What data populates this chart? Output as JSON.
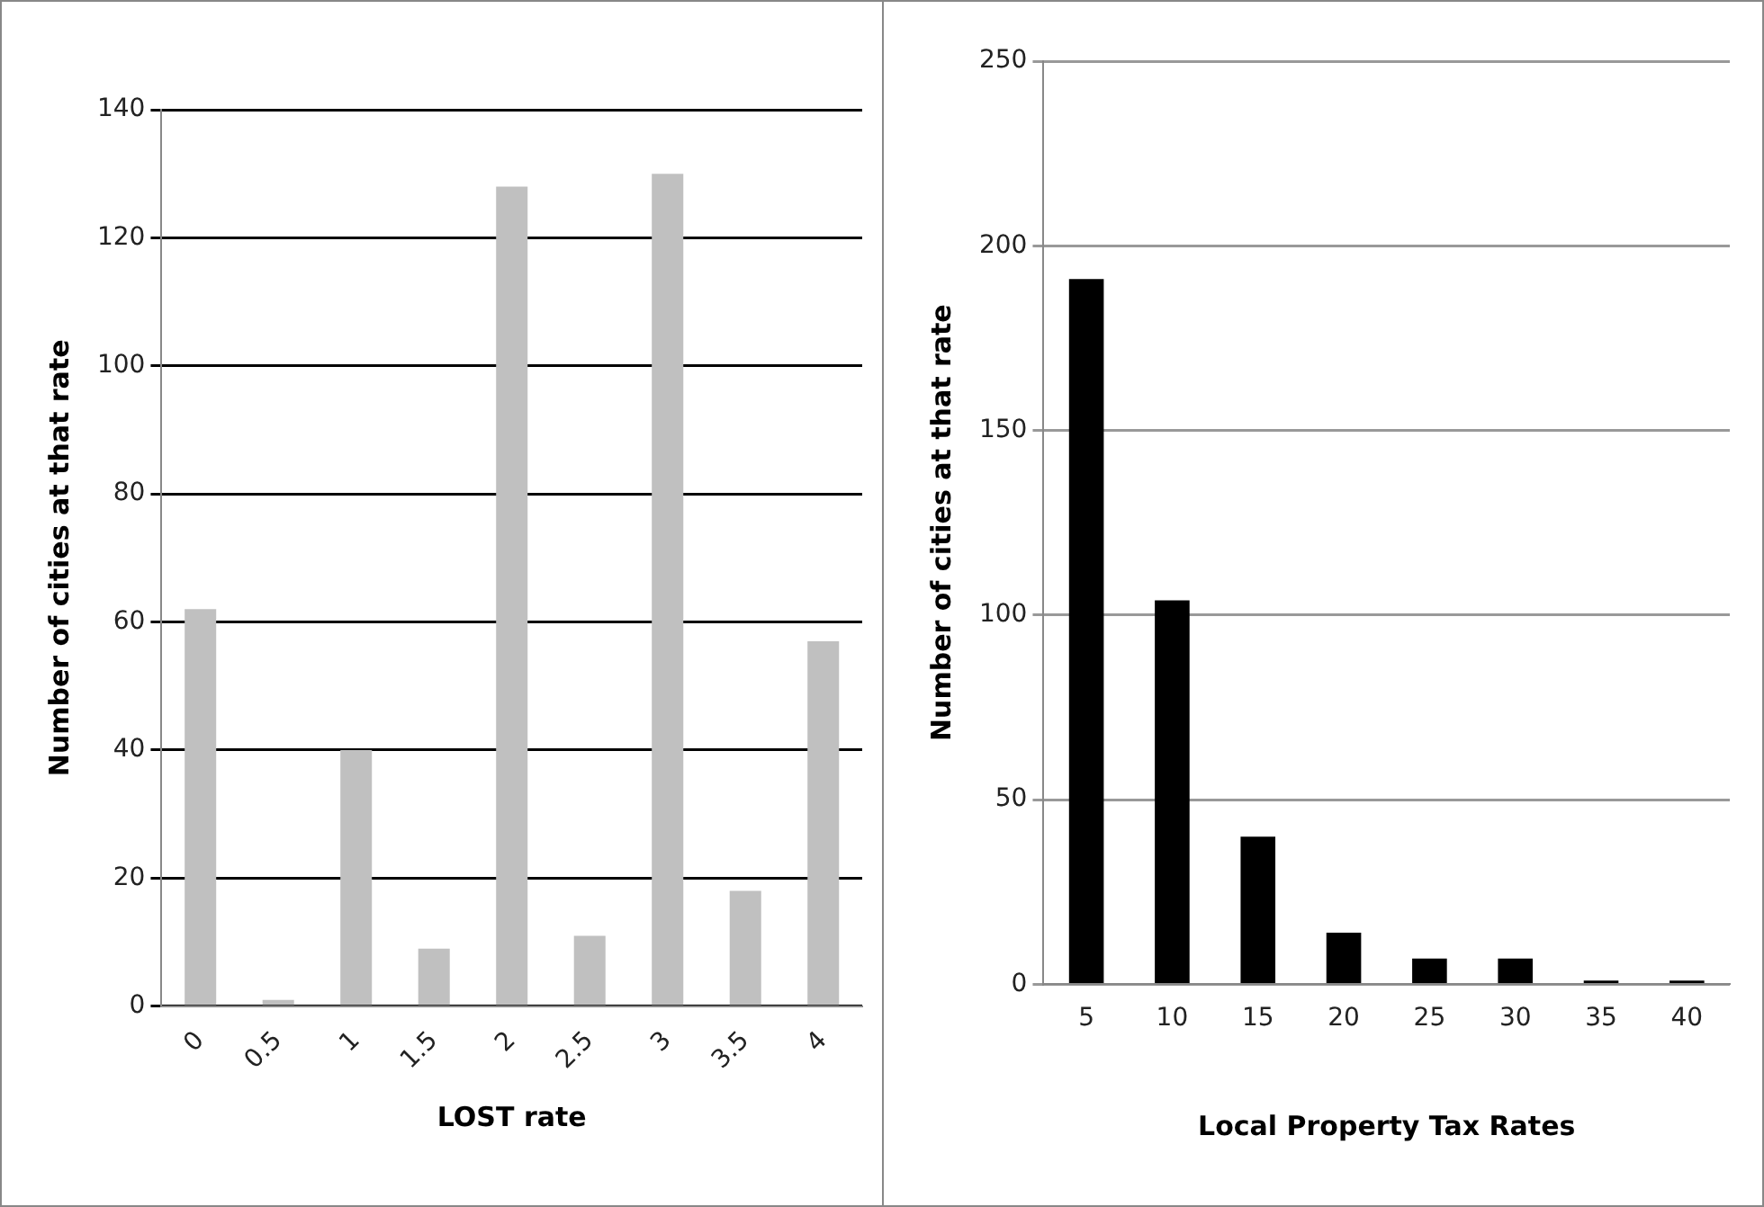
{
  "chart_data": [
    {
      "type": "bar",
      "xlabel": "LOST rate",
      "ylabel": "Number of cities at that rate",
      "categories": [
        "0",
        "0.5",
        "1",
        "1.5",
        "2",
        "2.5",
        "3",
        "3.5",
        "4"
      ],
      "values": [
        62,
        1,
        40,
        9,
        128,
        11,
        130,
        18,
        57
      ],
      "color": "#c0c0c0",
      "ylim": [
        0,
        140
      ],
      "yticks": [
        0,
        20,
        40,
        60,
        80,
        100,
        120,
        140
      ],
      "grid": "y",
      "legend": false
    },
    {
      "type": "bar",
      "xlabel": "Local Property Tax Rates",
      "ylabel": "Number of cities at that rate",
      "categories": [
        "5",
        "10",
        "15",
        "20",
        "25",
        "30",
        "35",
        "40"
      ],
      "values": [
        191,
        104,
        40,
        14,
        7,
        7,
        1,
        1
      ],
      "color": "#000000",
      "ylim": [
        0,
        250
      ],
      "yticks": [
        0,
        50,
        100,
        150,
        200,
        250
      ],
      "grid": "y",
      "legend": false
    }
  ]
}
